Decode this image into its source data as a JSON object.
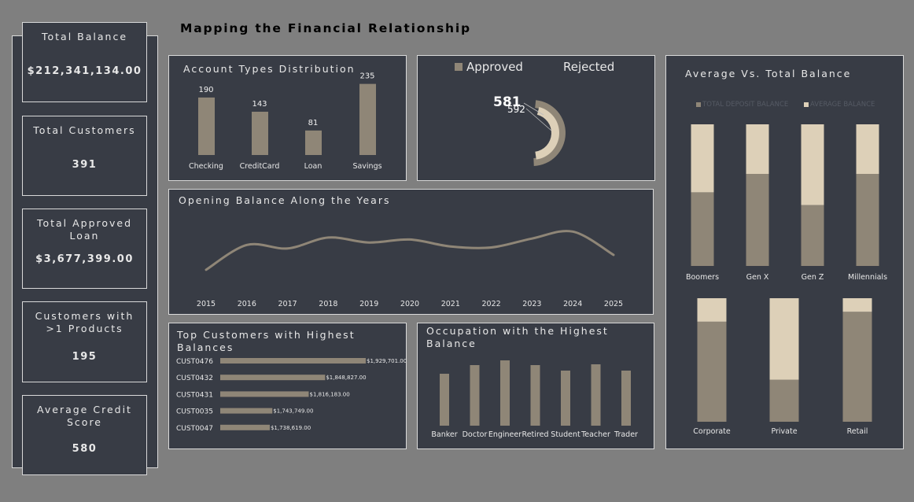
{
  "dashboard_title": "Mapping the Financial Relationship",
  "colors": {
    "background": "#7f7f7f",
    "panel": "#383c45",
    "primary": "#8f8677",
    "secondary": "#ddd0b8",
    "border": "#d9d9d9"
  },
  "kpis": [
    {
      "label": "Total Balance",
      "value": "$212,341,134.00"
    },
    {
      "label": "Total Customers",
      "value": "391"
    },
    {
      "label": "Total Approved Loan",
      "value": "$3,677,399.00"
    },
    {
      "label": "Customers with >1 Products",
      "value": "195"
    },
    {
      "label": "Average Credit Score",
      "value": "580"
    }
  ],
  "account_types": {
    "title": "Account Types Distribution",
    "chart_data": {
      "type": "bar",
      "categories": [
        "Checking",
        "CreditCard",
        "Loan",
        "Savings"
      ],
      "values": [
        190,
        143,
        81,
        235
      ],
      "ylim": [
        0,
        260
      ]
    }
  },
  "loan_status": {
    "legend": [
      "Approved",
      "Rejected"
    ],
    "chart_data": {
      "type": "pie",
      "categories": [
        "Approved",
        "Rejected"
      ],
      "values": [
        581,
        592
      ]
    }
  },
  "opening_balance": {
    "title": "Opening Balance Along the Years",
    "chart_data": {
      "type": "line",
      "x": [
        "2015",
        "2016",
        "2017",
        "2018",
        "2019",
        "2020",
        "2021",
        "2022",
        "2023",
        "2024",
        "2025"
      ],
      "series": [
        {
          "values": [
            0.05,
            0.55,
            0.48,
            0.7,
            0.6,
            0.66,
            0.52,
            0.5,
            0.68,
            0.82,
            0.35
          ]
        }
      ]
    }
  },
  "top_customers": {
    "title": "Top Customers with Highest Balances",
    "chart_data": {
      "type": "bar",
      "categories": [
        "CUST0476",
        "CUST0432",
        "CUST0431",
        "CUST0035",
        "CUST0047"
      ],
      "values": [
        1929701,
        1848827,
        1816183,
        1743749,
        1738619
      ],
      "labels": [
        "$1,929,701.00",
        "$1,848,827.00",
        "$1,816,183.00",
        "$1,743,749.00",
        "$1,738,619.00"
      ]
    }
  },
  "occupation": {
    "title": "Occupation with the Highest Balance",
    "chart_data": {
      "type": "bar",
      "categories": [
        "Banker",
        "Doctor",
        "Engineer",
        "Retired",
        "Student",
        "Teacher",
        "Trader"
      ],
      "values": [
        66,
        77,
        83,
        77,
        70,
        78,
        70
      ]
    }
  },
  "avg_vs_total": {
    "title": "Average Vs. Total Balance",
    "legend": [
      "TOTAL DEPOSIT BALANCE",
      "AVERAGE BALANCE"
    ],
    "chart_data": [
      {
        "type": "bar",
        "stacked": true,
        "categories": [
          "Boomers",
          "Gen X",
          "Gen Z",
          "Millennials"
        ],
        "series": [
          {
            "name": "TOTAL DEPOSIT BALANCE",
            "values": [
              52,
              65,
              43,
              65
            ]
          },
          {
            "name": "AVERAGE BALANCE",
            "values": [
              48,
              35,
              57,
              35
            ]
          }
        ]
      },
      {
        "type": "bar",
        "stacked": true,
        "categories": [
          "Corporate",
          "Private",
          "Retail"
        ],
        "series": [
          {
            "name": "TOTAL DEPOSIT BALANCE",
            "values": [
              81,
              34,
              89
            ]
          },
          {
            "name": "AVERAGE BALANCE",
            "values": [
              19,
              66,
              11
            ]
          }
        ]
      }
    ]
  }
}
